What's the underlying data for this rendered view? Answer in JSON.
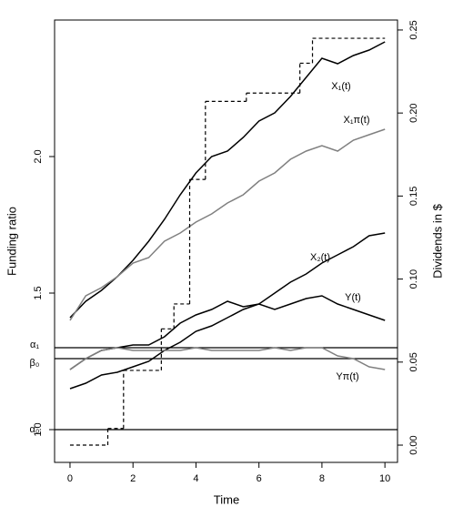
{
  "chart_data": {
    "type": "line",
    "xlabel": "Time",
    "ylabel": "Funding ratio",
    "y2label": "Dividends in $",
    "xlim": [
      -0.49,
      10.4
    ],
    "ylim": [
      0.88,
      2.5
    ],
    "y2lim": [
      -0.0104,
      0.256
    ],
    "xticks": [
      0,
      2,
      4,
      6,
      8,
      10
    ],
    "yticks": [
      {
        "value": 1,
        "label": "1.0"
      },
      1.5,
      {
        "value": 2,
        "label": "2.0"
      }
    ],
    "y2ticks": [
      {
        "value": 0,
        "label": "0.00"
      },
      0.05,
      {
        "value": 0.1,
        "label": "0.10"
      },
      0.15,
      {
        "value": 0.2,
        "label": "0.20"
      },
      0.25
    ],
    "hlines": [
      {
        "value": 1.3,
        "label": "α₁"
      },
      {
        "value": 1.26,
        "label": "β₀"
      },
      {
        "value": 1.0,
        "label": "α₀"
      }
    ],
    "x": [
      0,
      0.5,
      1,
      1.5,
      2,
      2.5,
      3,
      3.5,
      4,
      4.5,
      5,
      5.5,
      6,
      6.5,
      7,
      7.5,
      8,
      8.5,
      9,
      9.5,
      10
    ],
    "series": [
      {
        "name": "X₁(t)",
        "color": "#000000",
        "values": [
          1.41,
          1.47,
          1.51,
          1.56,
          1.62,
          1.69,
          1.77,
          1.86,
          1.94,
          2.0,
          2.02,
          2.07,
          2.13,
          2.16,
          2.22,
          2.29,
          2.36,
          2.34,
          2.37,
          2.39,
          2.42
        ]
      },
      {
        "name": "X₁π(t)",
        "color": "#808080",
        "values": [
          1.4,
          1.49,
          1.52,
          1.56,
          1.61,
          1.63,
          1.69,
          1.72,
          1.76,
          1.79,
          1.83,
          1.86,
          1.91,
          1.94,
          1.99,
          2.02,
          2.04,
          2.02,
          2.06,
          2.08,
          2.1
        ]
      },
      {
        "name": "X₂(t)",
        "color": "#000000",
        "values": [
          1.15,
          1.17,
          1.2,
          1.21,
          1.23,
          1.25,
          1.29,
          1.32,
          1.36,
          1.38,
          1.41,
          1.44,
          1.46,
          1.5,
          1.54,
          1.57,
          1.61,
          1.64,
          1.67,
          1.71,
          1.72
        ]
      },
      {
        "name": "Y(t)",
        "color": "#000000",
        "values": [
          1.22,
          1.26,
          1.29,
          1.3,
          1.31,
          1.31,
          1.34,
          1.39,
          1.42,
          1.44,
          1.47,
          1.45,
          1.46,
          1.44,
          1.46,
          1.48,
          1.49,
          1.46,
          1.44,
          1.42,
          1.4
        ]
      },
      {
        "name": "Yπ(t)",
        "color": "#808080",
        "values": [
          1.22,
          1.26,
          1.29,
          1.3,
          1.29,
          1.29,
          1.29,
          1.29,
          1.3,
          1.29,
          1.29,
          1.29,
          1.29,
          1.3,
          1.29,
          1.3,
          1.3,
          1.27,
          1.26,
          1.23,
          1.22
        ]
      },
      {
        "axis": "y2",
        "color": "#000000",
        "dashed": true,
        "step": true,
        "x": [
          0,
          1.2,
          1.7,
          2.9,
          3.3,
          3.8,
          4.3,
          5.6,
          7.3,
          7.7,
          10
        ],
        "values": [
          0,
          0.01,
          0.045,
          0.07,
          0.085,
          0.16,
          0.207,
          0.212,
          0.23,
          0.245,
          0.245
        ]
      }
    ]
  }
}
